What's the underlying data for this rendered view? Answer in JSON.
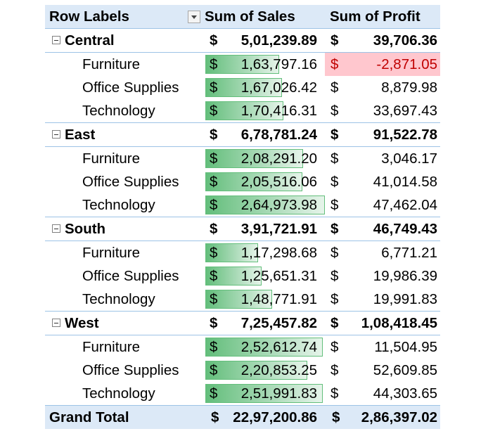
{
  "header": {
    "row_labels": "Row Labels",
    "sum_of_sales": "Sum of Sales",
    "sum_of_profit": "Sum of Profit"
  },
  "currency_symbol": "$",
  "colors": {
    "header_bg": "#dce9f7",
    "data_bar_green": "#63be7b",
    "negative_fill": "#ffc7ce",
    "negative_text": "#c00000"
  },
  "regions": [
    {
      "name": "Central",
      "sales": "5,01,239.89",
      "profit": "39,706.36",
      "items": [
        {
          "name": "Furniture",
          "sales": "1,63,797.16",
          "profit": "-2,871.05",
          "bar": 0.62,
          "negative": true
        },
        {
          "name": "Office Supplies",
          "sales": "1,67,026.42",
          "profit": "8,879.98",
          "bar": 0.64
        },
        {
          "name": "Technology",
          "sales": "1,70,416.31",
          "profit": "33,697.43",
          "bar": 0.65
        }
      ]
    },
    {
      "name": "East",
      "sales": "6,78,781.24",
      "profit": "91,522.78",
      "items": [
        {
          "name": "Furniture",
          "sales": "2,08,291.20",
          "profit": "3,046.17",
          "bar": 0.82
        },
        {
          "name": "Office Supplies",
          "sales": "2,05,516.06",
          "profit": "41,014.58",
          "bar": 0.81
        },
        {
          "name": "Technology",
          "sales": "2,64,973.98",
          "profit": "47,462.04",
          "bar": 1.0
        }
      ]
    },
    {
      "name": "South",
      "sales": "3,91,721.91",
      "profit": "46,749.43",
      "items": [
        {
          "name": "Furniture",
          "sales": "1,17,298.68",
          "profit": "6,771.21",
          "bar": 0.44
        },
        {
          "name": "Office Supplies",
          "sales": "1,25,651.31",
          "profit": "19,986.39",
          "bar": 0.47
        },
        {
          "name": "Technology",
          "sales": "1,48,771.91",
          "profit": "19,991.83",
          "bar": 0.56
        }
      ]
    },
    {
      "name": "West",
      "sales": "7,25,457.82",
      "profit": "1,08,418.45",
      "items": [
        {
          "name": "Furniture",
          "sales": "2,52,612.74",
          "profit": "11,504.95",
          "bar": 0.98
        },
        {
          "name": "Office Supplies",
          "sales": "2,20,853.25",
          "profit": "52,609.85",
          "bar": 0.85
        },
        {
          "name": "Technology",
          "sales": "2,51,991.83",
          "profit": "44,303.65",
          "bar": 0.98
        }
      ]
    }
  ],
  "grand_total": {
    "label": "Grand Total",
    "sales": "22,97,200.86",
    "profit": "2,86,397.02"
  }
}
